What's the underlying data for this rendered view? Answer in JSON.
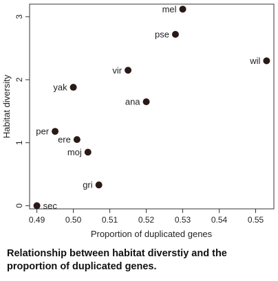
{
  "chart_data": {
    "type": "scatter",
    "title": "",
    "xlabel": "Proportion of duplicated genes",
    "ylabel": "Habitat diversity",
    "xlim": [
      0.488,
      0.555
    ],
    "ylim": [
      -0.05,
      3.2
    ],
    "xticks": [
      "0.49",
      "0.50",
      "0.51",
      "0.52",
      "0.53",
      "0.54",
      "0.55"
    ],
    "xtick_values": [
      0.49,
      0.5,
      0.51,
      0.52,
      0.53,
      0.54,
      0.55
    ],
    "yticks": [
      "0",
      "1",
      "2",
      "3"
    ],
    "ytick_values": [
      0,
      1,
      2,
      3
    ],
    "grid": false,
    "marker_color": "#2a1a17",
    "points": [
      {
        "label": "mel",
        "x": 0.53,
        "y": 3.12,
        "label_side": "left"
      },
      {
        "label": "pse",
        "x": 0.528,
        "y": 2.72,
        "label_side": "left"
      },
      {
        "label": "wil",
        "x": 0.553,
        "y": 2.3,
        "label_side": "left"
      },
      {
        "label": "vir",
        "x": 0.515,
        "y": 2.15,
        "label_side": "left"
      },
      {
        "label": "yak",
        "x": 0.5,
        "y": 1.88,
        "label_side": "left"
      },
      {
        "label": "ana",
        "x": 0.52,
        "y": 1.65,
        "label_side": "left"
      },
      {
        "label": "per",
        "x": 0.495,
        "y": 1.18,
        "label_side": "left"
      },
      {
        "label": "ere",
        "x": 0.501,
        "y": 1.05,
        "label_side": "left"
      },
      {
        "label": "moj",
        "x": 0.504,
        "y": 0.85,
        "label_side": "left"
      },
      {
        "label": "gri",
        "x": 0.507,
        "y": 0.33,
        "label_side": "left"
      },
      {
        "label": "sec",
        "x": 0.49,
        "y": 0.0,
        "label_side": "right"
      }
    ]
  },
  "caption": "Relationship between habitat diverstiy and the proportion of duplicated genes."
}
